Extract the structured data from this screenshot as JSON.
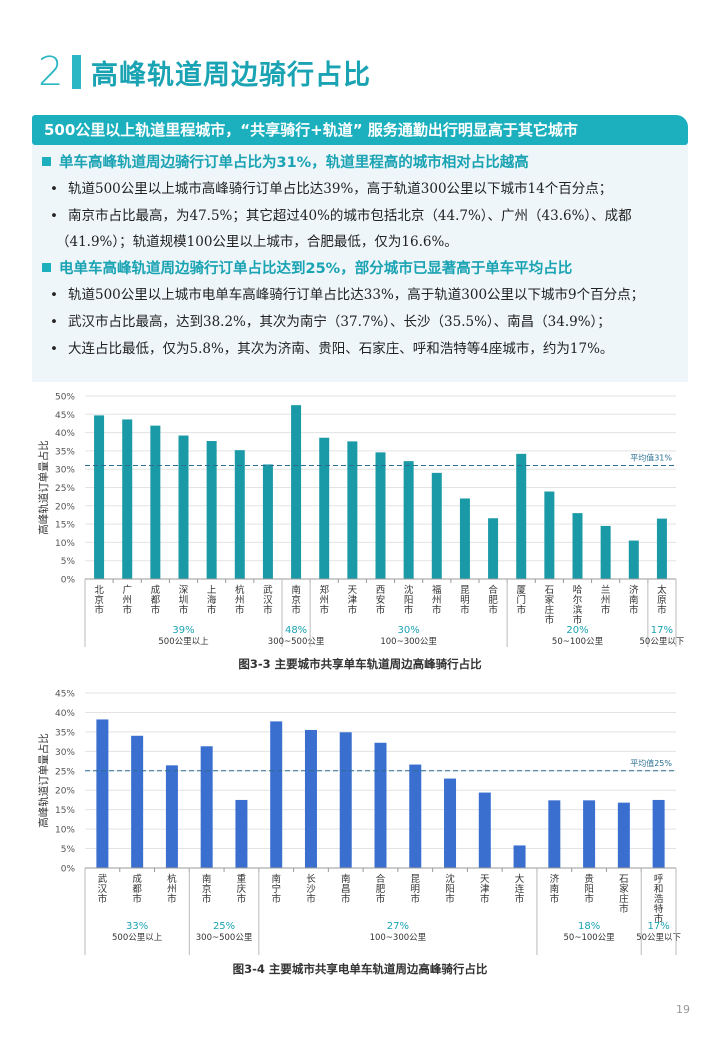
{
  "section": {
    "number": "2",
    "title": "高峰轨道周边骑行占比"
  },
  "banner": "500公里以上轨道里程城市，“共享骑行+轨道” 服务通勤出行明显高于其它城市",
  "sub1": {
    "title": "单车高峰轨道周边骑行订单占比为31%，轨道里程高的城市相对占比越高",
    "bullets": [
      "轨道500公里以上城市高峰骑行订单占比达39%，高于轨道300公里以下城市14个百分点；",
      "南京市占比最高，为47.5%；其它超过40%的城市包括北京（44.7%）、广州（43.6%）、成都",
      "（41.9%）；轨道规模100公里以上城市，合肥最低，仅为16.6%。"
    ]
  },
  "sub2": {
    "title": "电单车高峰轨道周边骑行订单占比达到25%，部分城市已显著高于单车平均占比",
    "bullets": [
      "轨道500公里以上城市电单车高峰骑行订单占比达33%，高于轨道300公里以下城市9个百分点；",
      "武汉市占比最高，达到38.2%，其次为南宁（37.7%）、长沙（35.5%）、南昌（34.9%）；",
      "大连占比最低，仅为5.8%，其次为济南、贵阳、石家庄、呼和浩特等4座城市，约为17%。"
    ]
  },
  "chart_data": [
    {
      "type": "bar",
      "title": "图3-3 主要城市共享单车轨道周边高峰骑行占比",
      "ylabel": "高峰轨道订单量占比",
      "ylim": [
        0,
        50
      ],
      "yticks": [
        "0%",
        "5%",
        "10%",
        "15%",
        "20%",
        "25%",
        "30%",
        "35%",
        "40%",
        "45%",
        "50%"
      ],
      "color": "#1a9aa6",
      "categories": [
        "北京市",
        "广州市",
        "成都市",
        "深圳市",
        "上海市",
        "杭州市",
        "武汉市",
        "南京市",
        "郑州市",
        "天津市",
        "西安市",
        "沈阳市",
        "福州市",
        "昆明市",
        "合肥市",
        "厦门市",
        "石家庄市",
        "哈尔滨市",
        "兰州市",
        "济南市",
        "太原市"
      ],
      "values": [
        44.7,
        43.6,
        41.9,
        39.2,
        37.7,
        35.2,
        31.3,
        47.5,
        38.6,
        37.6,
        34.6,
        32.2,
        29.0,
        22.0,
        16.6,
        34.2,
        23.9,
        18.0,
        14.5,
        10.5,
        16.5
      ],
      "avg_line": {
        "value": 31,
        "label": "平均值31%"
      },
      "groups": [
        {
          "pct": "39%",
          "label": "500公里以上",
          "start": 0,
          "end": 6
        },
        {
          "pct": "48%",
          "label": "300~500公里",
          "start": 7,
          "end": 7
        },
        {
          "pct": "30%",
          "label": "100~300公里",
          "start": 8,
          "end": 14
        },
        {
          "pct": "20%",
          "label": "50~100公里",
          "start": 15,
          "end": 19
        },
        {
          "pct": "17%",
          "label": "50公里以下",
          "start": 20,
          "end": 20
        }
      ]
    },
    {
      "type": "bar",
      "title": "图3-4 主要城市共享电单车轨道周边高峰骑行占比",
      "ylabel": "高峰轨道订单量占比",
      "ylim": [
        0,
        45
      ],
      "yticks": [
        "0%",
        "5%",
        "10%",
        "15%",
        "20%",
        "25%",
        "30%",
        "35%",
        "40%",
        "45%"
      ],
      "color": "#3a6fd0",
      "categories": [
        "武汉市",
        "成都市",
        "杭州市",
        "南京市",
        "重庆市",
        "南宁市",
        "长沙市",
        "南昌市",
        "合肥市",
        "昆明市",
        "沈阳市",
        "天津市",
        "大连市",
        "济南市",
        "贵阳市",
        "石家庄市",
        "呼和浩特市"
      ],
      "values": [
        38.2,
        34.0,
        26.4,
        31.3,
        17.5,
        37.7,
        35.5,
        34.9,
        32.2,
        26.6,
        23.0,
        19.4,
        5.8,
        17.4,
        17.4,
        16.8,
        17.5
      ],
      "avg_line": {
        "value": 25,
        "label": "平均值25%"
      },
      "groups": [
        {
          "pct": "33%",
          "label": "500公里以上",
          "start": 0,
          "end": 2
        },
        {
          "pct": "25%",
          "label": "300~500公里",
          "start": 3,
          "end": 4
        },
        {
          "pct": "27%",
          "label": "100~300公里",
          "start": 5,
          "end": 12
        },
        {
          "pct": "18%",
          "label": "50~100公里",
          "start": 13,
          "end": 15
        },
        {
          "pct": "17%",
          "label": "50公里以下",
          "start": 16,
          "end": 16
        }
      ]
    }
  ],
  "page_number": "19",
  "colors": {
    "accent": "#1cb0bf",
    "panel_bg": "#eef6f9",
    "bar1": "#1a9aa6",
    "bar2": "#3a6fd0",
    "group_pct": "#1aa3b3"
  }
}
